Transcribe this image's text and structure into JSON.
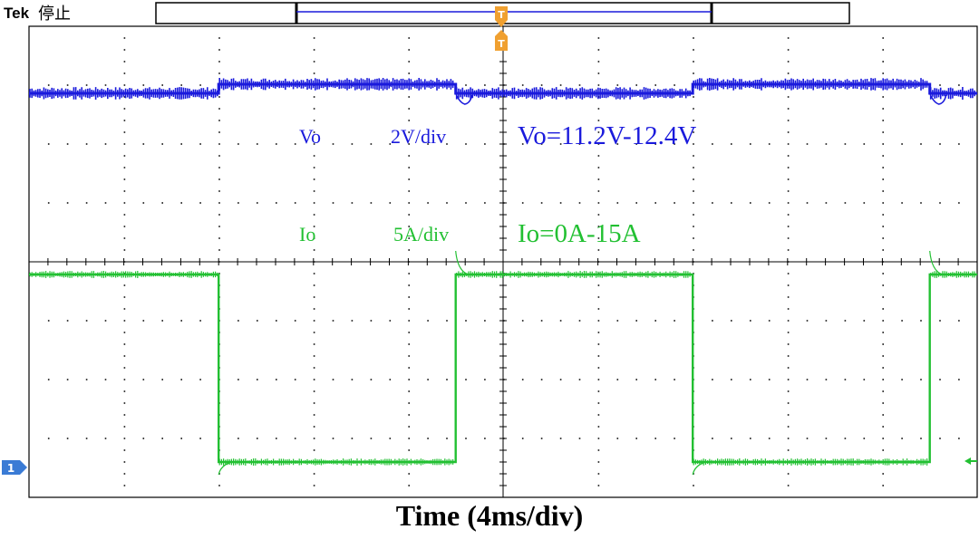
{
  "header": {
    "brand": "Tek",
    "status": "停止"
  },
  "markers": {
    "trigger": "T",
    "channel1": "1"
  },
  "annotations": {
    "vo_channel": "Vo",
    "vo_scale": "2V/div",
    "vo_range": "Vo=11.2V-12.4V",
    "io_channel": "Io",
    "io_scale": "5A/div",
    "io_range": "Io=0A-15A"
  },
  "colors": {
    "vo": "#1a1adc",
    "io": "#22c032",
    "trigger": "#f0a030",
    "channel_marker": "#3a7bd5",
    "grid": "#000000"
  },
  "chart_data": {
    "type": "line",
    "title": "",
    "xlabel": "Time (4ms/div)",
    "ylabel": "",
    "x_unit": "ms",
    "x_divisions": 10,
    "y_divisions": 8,
    "xlim": [
      0,
      40
    ],
    "series": [
      {
        "name": "Vo",
        "scale": "2V/div",
        "range": "Vo=11.2V-12.4V",
        "unit": "V",
        "x": [
          0,
          8,
          8,
          18,
          18,
          28,
          28,
          38,
          38,
          40
        ],
        "values": [
          11.2,
          11.2,
          12.4,
          12.4,
          11.2,
          11.2,
          12.4,
          12.4,
          11.2,
          11.2
        ]
      },
      {
        "name": "Io",
        "scale": "5A/div",
        "range": "Io=0A-15A",
        "unit": "A",
        "x": [
          0,
          8,
          8,
          18,
          18,
          28,
          28,
          38,
          38,
          40
        ],
        "values": [
          15,
          15,
          0,
          0,
          15,
          15,
          0,
          0,
          15,
          15
        ]
      }
    ]
  }
}
